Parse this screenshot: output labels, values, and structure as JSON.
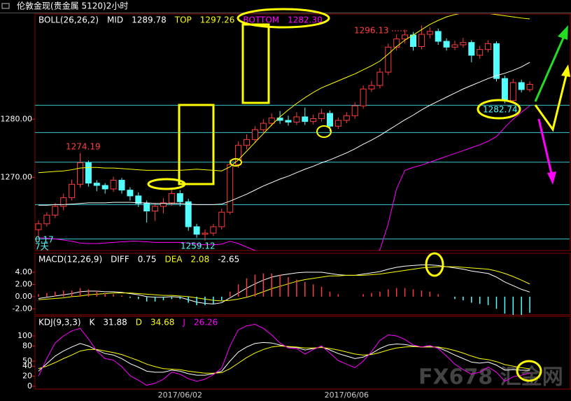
{
  "title": "伦敦金现(贵金属 5120)2小时",
  "watermark": "FX678 汇金网",
  "chart_data": [
    {
      "type": "candlestick",
      "indicator": "BOLL(26,26,2)",
      "open": [
        1261.0,
        1262.0,
        1263.5,
        1265.0,
        1266.5,
        1268.8,
        1272.5,
        1269.0,
        1268.6,
        1268.0,
        1269.5,
        1267.8,
        1266.8,
        1265.5,
        1264.2,
        1265.0,
        1265.6,
        1267.2,
        1265.8,
        1261.5,
        1260.2,
        1260.4,
        1261.5,
        1264.0,
        1272.2,
        1275.5,
        1276.5,
        1278.2,
        1279.3,
        1280.2,
        1279.8,
        1279.5,
        1280.4,
        1279.6,
        1280.1,
        1281.0,
        1278.8,
        1279.8,
        1280.6,
        1282.3,
        1285.2,
        1285.8,
        1288.1,
        1292.4,
        1293.8,
        1294.5,
        1292.5,
        1294.6,
        1295.1,
        1293.4,
        1292.4,
        1292.8,
        1293.2,
        1291.0,
        1292.0,
        1293.0,
        1287.0,
        1283.2,
        1286.3,
        1285.1
      ],
      "high": [
        1262.6,
        1264.0,
        1265.6,
        1267.2,
        1269.6,
        1274.19,
        1272.9,
        1269.5,
        1269.0,
        1270.1,
        1269.9,
        1268.3,
        1267.4,
        1266.0,
        1265.6,
        1266.4,
        1268.0,
        1267.8,
        1266.3,
        1262.0,
        1261.0,
        1262.0,
        1264.6,
        1273.0,
        1276.2,
        1277.4,
        1278.8,
        1280.0,
        1281.0,
        1281.4,
        1280.6,
        1281.2,
        1282.0,
        1280.8,
        1281.8,
        1281.5,
        1280.3,
        1281.2,
        1282.9,
        1285.8,
        1286.6,
        1288.8,
        1293.0,
        1294.6,
        1295.4,
        1295.0,
        1296.13,
        1295.8,
        1295.6,
        1293.9,
        1293.5,
        1294.0,
        1293.6,
        1292.6,
        1293.6,
        1293.4,
        1287.5,
        1286.9,
        1286.8,
        1286.5
      ],
      "low": [
        1259.8,
        1261.5,
        1263.0,
        1264.3,
        1266.0,
        1268.2,
        1268.4,
        1267.6,
        1267.2,
        1267.5,
        1267.2,
        1266.0,
        1264.9,
        1262.2,
        1262.5,
        1263.8,
        1265.1,
        1265.0,
        1260.8,
        1259.6,
        1259.12,
        1259.9,
        1261.0,
        1263.6,
        1271.6,
        1274.8,
        1275.9,
        1277.7,
        1278.8,
        1279.2,
        1278.9,
        1279.0,
        1279.0,
        1279.1,
        1279.6,
        1277.9,
        1278.3,
        1279.3,
        1280.1,
        1281.8,
        1284.7,
        1285.3,
        1287.6,
        1291.8,
        1293.0,
        1291.8,
        1292.0,
        1293.9,
        1292.8,
        1291.8,
        1291.9,
        1292.3,
        1289.8,
        1290.4,
        1291.5,
        1286.5,
        1282.74,
        1282.9,
        1284.6,
        1284.7
      ],
      "close": [
        1262.0,
        1263.5,
        1265.0,
        1266.5,
        1268.8,
        1272.5,
        1269.0,
        1268.6,
        1268.0,
        1269.5,
        1267.8,
        1266.8,
        1265.5,
        1264.2,
        1265.0,
        1265.6,
        1267.2,
        1265.8,
        1261.5,
        1260.2,
        1260.4,
        1261.5,
        1264.0,
        1272.2,
        1275.5,
        1276.5,
        1278.2,
        1279.3,
        1280.2,
        1279.8,
        1279.5,
        1280.4,
        1279.6,
        1280.1,
        1281.0,
        1278.8,
        1279.8,
        1280.6,
        1282.3,
        1285.2,
        1285.8,
        1288.1,
        1292.4,
        1293.8,
        1294.5,
        1292.5,
        1294.6,
        1295.1,
        1293.4,
        1292.4,
        1292.8,
        1293.2,
        1291.0,
        1292.0,
        1293.0,
        1287.0,
        1283.2,
        1286.3,
        1285.1,
        1286.0
      ],
      "up_color": "#ff3c3c",
      "down_color": "#54ffff",
      "series": [
        {
          "name": "MID",
          "color": "#ffffff",
          "current": 1289.78,
          "values": [
            1265.2,
            1265.2,
            1265.3,
            1265.3,
            1265.4,
            1265.5,
            1265.6,
            1265.6,
            1265.6,
            1265.7,
            1265.7,
            1265.7,
            1265.6,
            1265.6,
            1265.5,
            1265.5,
            1265.5,
            1265.5,
            1265.4,
            1265.3,
            1265.3,
            1265.3,
            1265.4,
            1265.9,
            1266.5,
            1267.1,
            1267.8,
            1268.5,
            1269.1,
            1269.7,
            1270.2,
            1270.8,
            1271.4,
            1271.9,
            1272.5,
            1273.0,
            1273.6,
            1274.2,
            1274.9,
            1275.7,
            1276.4,
            1277.2,
            1278.1,
            1279.0,
            1279.9,
            1280.7,
            1281.6,
            1282.4,
            1283.1,
            1283.8,
            1284.5,
            1285.2,
            1285.8,
            1286.4,
            1287.0,
            1287.5,
            1287.9,
            1288.4,
            1289.0,
            1289.78
          ]
        },
        {
          "name": "TOP",
          "color": "#ffff00",
          "current": 1297.26,
          "values": [
            1270.8,
            1270.9,
            1271.0,
            1271.1,
            1271.3,
            1271.6,
            1271.7,
            1271.7,
            1271.6,
            1271.6,
            1271.5,
            1271.4,
            1271.3,
            1271.2,
            1271.2,
            1271.2,
            1271.2,
            1271.2,
            1271.3,
            1271.4,
            1271.3,
            1271.2,
            1271.1,
            1271.8,
            1273.0,
            1274.5,
            1276.0,
            1277.5,
            1279.0,
            1280.4,
            1281.6,
            1282.7,
            1283.7,
            1284.6,
            1285.4,
            1286.0,
            1286.6,
            1287.2,
            1287.8,
            1288.5,
            1289.2,
            1290.0,
            1291.2,
            1292.5,
            1293.6,
            1294.5,
            1295.4,
            1296.3,
            1297.0,
            1297.6,
            1298.0,
            1298.3,
            1298.4,
            1298.3,
            1298.2,
            1298.0,
            1297.8,
            1297.6,
            1297.4,
            1297.26
          ]
        },
        {
          "name": "BOTTOM",
          "color": "#ff00ff",
          "current": {
            "value": 1282.3,
            "label": "1282.30"
          },
          "values": [
            1259.6,
            1259.5,
            1259.4,
            1259.2,
            1259.0,
            1258.7,
            1258.6,
            1258.6,
            1258.7,
            1258.8,
            1258.9,
            1259.0,
            1259.0,
            1258.9,
            1258.8,
            1258.8,
            1258.8,
            1258.8,
            1258.7,
            1258.5,
            1258.4,
            1258.4,
            1258.5,
            1259.0,
            1258.6,
            1258.0,
            1257.4,
            1257.0,
            1256.5,
            1256.2,
            1256.0,
            1255.9,
            1255.9,
            1256.0,
            1256.0,
            1256.1,
            1256.2,
            1256.3,
            1256.4,
            1256.5,
            1256.6,
            1257.5,
            1262.0,
            1268.0,
            1271.2,
            1271.7,
            1272.1,
            1272.6,
            1273.1,
            1273.6,
            1274.1,
            1274.6,
            1275.1,
            1275.6,
            1276.2,
            1277.0,
            1278.6,
            1280.0,
            1281.2,
            1282.3
          ]
        }
      ],
      "levels": [
        1282.4,
        1277.7,
        1272.6,
        1265.3,
        1259.4
      ],
      "level_color": "#38c8d0",
      "annotations": [
        {
          "value": 1274.19,
          "color": "#ff4040"
        },
        {
          "value": 1296.13,
          "color": "#ff4040"
        },
        {
          "value": 1259.12,
          "color": "#54ffff"
        },
        {
          "value": 1282.74,
          "color": "#54ffff"
        }
      ],
      "corner_labels": [
        "0.17",
        "7天"
      ],
      "ylim": [
        1257.4,
        1298.1
      ],
      "yticks": [
        {
          "value": 1270,
          "label": "1270.00"
        },
        {
          "value": 1280,
          "label": "1280.00"
        }
      ]
    },
    {
      "type": "line",
      "indicator": "MACD(12,26,9)",
      "up_color": "#ff3c3c",
      "down_color": "#54ffff",
      "series": [
        {
          "name": "DIFF",
          "color": "#ffffff",
          "current": 0.75,
          "values": [
            -0.3,
            -0.1,
            0.1,
            0.3,
            0.5,
            0.8,
            0.9,
            0.9,
            0.8,
            0.8,
            0.7,
            0.5,
            0.3,
            0.0,
            -0.1,
            -0.1,
            0.0,
            -0.1,
            -0.5,
            -0.9,
            -1.1,
            -1.2,
            -1.0,
            -0.2,
            0.6,
            1.4,
            2.1,
            2.7,
            3.2,
            3.5,
            3.7,
            3.9,
            4.0,
            4.0,
            4.0,
            3.8,
            3.6,
            3.5,
            3.5,
            3.7,
            3.9,
            4.1,
            4.5,
            4.8,
            5.0,
            5.1,
            5.2,
            5.2,
            5.1,
            4.9,
            4.7,
            4.5,
            4.2,
            4.0,
            3.8,
            3.2,
            2.4,
            1.8,
            1.2,
            0.75
          ]
        },
        {
          "name": "DEA",
          "color": "#ffff00",
          "current": 2.08,
          "values": [
            -0.5,
            -0.4,
            -0.3,
            -0.2,
            0.0,
            0.1,
            0.3,
            0.4,
            0.5,
            0.6,
            0.6,
            0.6,
            0.5,
            0.4,
            0.3,
            0.2,
            0.2,
            0.1,
            0.0,
            -0.2,
            -0.4,
            -0.6,
            -0.7,
            -0.6,
            -0.4,
            -0.1,
            0.3,
            0.8,
            1.3,
            1.7,
            2.1,
            2.5,
            2.8,
            3.0,
            3.2,
            3.4,
            3.4,
            3.5,
            3.5,
            3.5,
            3.6,
            3.7,
            3.9,
            4.1,
            4.3,
            4.5,
            4.7,
            4.8,
            4.9,
            4.9,
            4.9,
            4.8,
            4.7,
            4.6,
            4.5,
            4.2,
            3.8,
            3.3,
            2.7,
            2.08
          ]
        },
        {
          "style": "bar",
          "color": "#ffffff",
          "current": -2.65,
          "values": [
            0.4,
            0.6,
            0.8,
            1.0,
            1.0,
            1.4,
            1.2,
            1.0,
            0.6,
            0.4,
            0.2,
            -0.2,
            -0.4,
            -0.8,
            -0.8,
            -0.6,
            -0.4,
            -0.4,
            -1.0,
            -1.4,
            -1.4,
            -1.2,
            -0.6,
            0.8,
            2.0,
            3.0,
            3.6,
            3.8,
            3.8,
            3.6,
            3.2,
            2.8,
            2.4,
            2.0,
            1.6,
            0.8,
            0.4,
            0.0,
            0.0,
            0.4,
            0.6,
            0.8,
            1.2,
            1.4,
            1.4,
            1.2,
            1.0,
            0.8,
            0.4,
            0.0,
            -0.4,
            -0.6,
            -1.0,
            -1.2,
            -1.4,
            -2.0,
            -2.8,
            -3.0,
            -3.0,
            -2.65
          ]
        }
      ],
      "ylim": [
        -3.0,
        7.1
      ],
      "yticks": [
        {
          "value": 4,
          "label": "4.00"
        },
        {
          "value": 2,
          "label": "2.00"
        },
        {
          "value": 0,
          "label": "0.00"
        },
        {
          "value": -2,
          "label": "-2.00"
        }
      ]
    },
    {
      "type": "line",
      "indicator": "KDJ(9,3,3)",
      "categories": [
        null,
        null,
        null,
        null,
        null,
        null,
        null,
        null,
        null,
        null,
        null,
        null,
        null,
        null,
        null,
        null,
        null,
        "2017/06/02",
        null,
        null,
        null,
        null,
        null,
        null,
        null,
        null,
        null,
        null,
        null,
        null,
        null,
        null,
        null,
        null,
        null,
        null,
        null,
        "2017/06/06",
        null,
        null,
        null,
        null,
        null,
        null,
        null,
        null,
        null,
        null,
        null,
        null,
        null,
        null,
        null,
        null,
        null,
        null,
        null,
        null,
        null,
        null
      ],
      "series": [
        {
          "name": "K",
          "color": "#ffffff",
          "current": 31.88,
          "values": [
            30,
            45,
            60,
            70,
            78,
            85,
            80,
            72,
            65,
            62,
            55,
            45,
            38,
            30,
            28,
            28,
            32,
            30,
            25,
            22,
            22,
            25,
            30,
            50,
            68,
            78,
            85,
            87,
            86,
            82,
            78,
            77,
            72,
            75,
            78,
            72,
            65,
            60,
            55,
            58,
            65,
            75,
            82,
            84,
            83,
            80,
            78,
            79,
            77,
            70,
            62,
            55,
            48,
            46,
            48,
            42,
            32,
            33,
            32,
            31.88
          ]
        },
        {
          "name": "D",
          "color": "#ffff00",
          "current": 34.68,
          "values": [
            35,
            40,
            47,
            55,
            62,
            70,
            73,
            73,
            70,
            67,
            63,
            57,
            51,
            44,
            39,
            35,
            34,
            33,
            30,
            28,
            26,
            26,
            27,
            35,
            46,
            57,
            66,
            73,
            78,
            80,
            79,
            78,
            76,
            76,
            77,
            75,
            72,
            68,
            64,
            62,
            63,
            67,
            72,
            76,
            78,
            79,
            78,
            78,
            78,
            75,
            71,
            66,
            60,
            55,
            53,
            49,
            43,
            40,
            37,
            34.68
          ]
        },
        {
          "name": "J",
          "color": "#ff00ff",
          "current": 26.26,
          "values": [
            20,
            55,
            86,
            100,
            110,
            115,
            94,
            70,
            55,
            52,
            39,
            21,
            12,
            2,
            6,
            14,
            28,
            24,
            15,
            10,
            14,
            23,
            36,
            80,
            112,
            120,
            123,
            115,
            102,
            86,
            76,
            75,
            64,
            73,
            80,
            66,
            51,
            44,
            37,
            50,
            69,
            91,
            102,
            100,
            93,
            82,
            78,
            81,
            75,
            60,
            44,
            33,
            24,
            28,
            38,
            28,
            10,
            19,
            22,
            26.26
          ]
        }
      ],
      "ylim": [
        -5.6,
        138.9
      ],
      "yticks": [
        100,
        80,
        50,
        40,
        20,
        0
      ]
    }
  ]
}
